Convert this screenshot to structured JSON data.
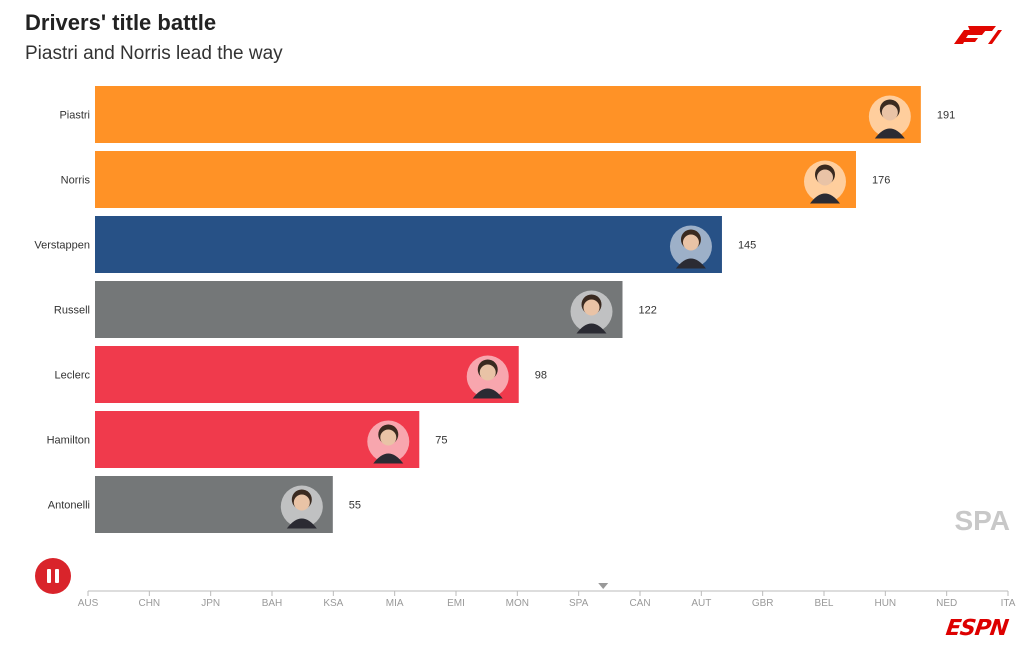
{
  "header": {
    "title": "Drivers' title battle",
    "subtitle": "Piastri and Norris lead the way"
  },
  "current_race": "SPA",
  "current_race_index": 8.4,
  "controls": {
    "pause_icon": "pause-icon"
  },
  "brand": {
    "espn_text": "ESPN",
    "f1_icon": "f1-logo-icon"
  },
  "colors": {
    "mclaren": "#ff9226",
    "red_bull": "#275186",
    "mercedes": "#747778",
    "ferrari": "#f03a4c",
    "accent": "#d9242b"
  },
  "chart_data": {
    "type": "bar",
    "orientation": "horizontal",
    "title": "Drivers' title battle",
    "subtitle": "Piastri and Norris lead the way",
    "categories": [
      "Piastri",
      "Norris",
      "Verstappen",
      "Russell",
      "Leclerc",
      "Hamilton",
      "Antonelli"
    ],
    "values": [
      191,
      176,
      145,
      122,
      98,
      75,
      55
    ],
    "teams": [
      "mclaren",
      "mclaren",
      "red_bull",
      "mercedes",
      "ferrari",
      "ferrari",
      "mercedes"
    ],
    "xlim": [
      0,
      210
    ],
    "timeline": [
      "AUS",
      "CHN",
      "JPN",
      "BAH",
      "KSA",
      "MIA",
      "EMI",
      "MON",
      "SPA",
      "CAN",
      "AUT",
      "GBR",
      "BEL",
      "HUN",
      "NED",
      "ITA"
    ],
    "xlabel": "",
    "ylabel": "",
    "grid": false
  }
}
